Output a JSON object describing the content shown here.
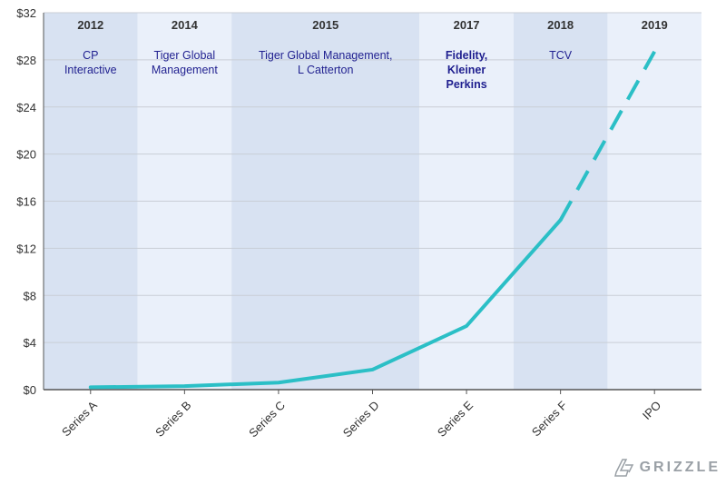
{
  "chart_data": {
    "type": "line",
    "categories": [
      "Series A",
      "Series B",
      "Series C",
      "Series D",
      "Series E",
      "Series F",
      "IPO"
    ],
    "series": [
      {
        "values": [
          0.2,
          0.3,
          0.6,
          1.7,
          5.4,
          14.4,
          28.7
        ],
        "line_color": "#2bbfc6",
        "dashed_from_index": 5
      }
    ],
    "ylim": [
      0,
      32
    ],
    "yticks": [
      0,
      4,
      8,
      12,
      16,
      20,
      24,
      28,
      32
    ],
    "ytick_labels": [
      "$0",
      "$4",
      "$8",
      "$12",
      "$16",
      "$20",
      "$24",
      "$28",
      "$32"
    ],
    "grid": true,
    "rounds": [
      {
        "year": "2012",
        "investors": [
          "CP",
          "Interactive"
        ],
        "span": [
          0,
          0
        ],
        "band_color": "#d8e2f2"
      },
      {
        "year": "2014",
        "investors": [
          "Tiger Global",
          "Management"
        ],
        "span": [
          1,
          1
        ],
        "band_color": "#eaf0fa"
      },
      {
        "year": "2015",
        "investors": [
          "Tiger Global Management,",
          "L Catterton"
        ],
        "span": [
          2,
          3
        ],
        "band_color": "#d8e2f2"
      },
      {
        "year": "2017",
        "investors": [
          "Fidelity,",
          "Kleiner",
          "Perkins"
        ],
        "span": [
          4,
          4
        ],
        "band_color": "#eaf0fa",
        "bold": true
      },
      {
        "year": "2018",
        "investors": [
          "TCV"
        ],
        "span": [
          5,
          5
        ],
        "band_color": "#d8e2f2"
      },
      {
        "year": "2019",
        "investors": [],
        "span": [
          6,
          6
        ],
        "band_color": "#eaf0fa"
      }
    ]
  },
  "logo": {
    "text": "GRIZZLE"
  }
}
